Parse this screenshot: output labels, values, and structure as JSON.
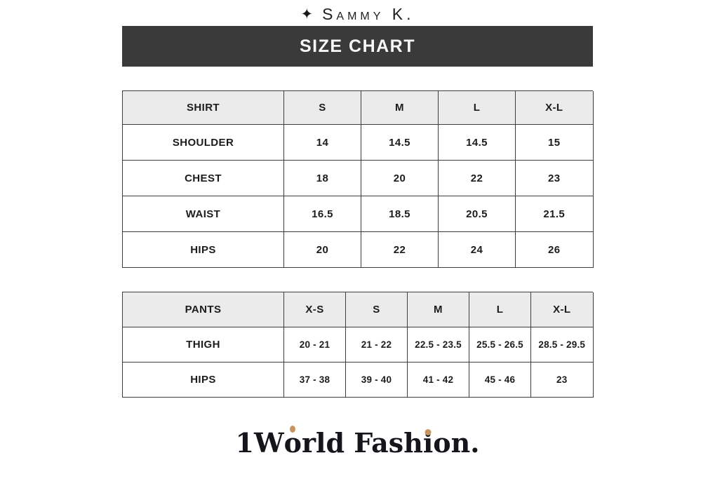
{
  "brand": {
    "star": "✦",
    "name": "Sammy K."
  },
  "banner": {
    "title": "SIZE CHART"
  },
  "shirt_table": {
    "header": [
      "SHIRT",
      "S",
      "M",
      "L",
      "X-L"
    ],
    "rows": [
      {
        "label": "SHOULDER",
        "values": [
          "14",
          "14.5",
          "14.5",
          "15"
        ]
      },
      {
        "label": "CHEST",
        "values": [
          "18",
          "20",
          "22",
          "23"
        ]
      },
      {
        "label": "WAIST",
        "values": [
          "16.5",
          "18.5",
          "20.5",
          "21.5"
        ]
      },
      {
        "label": "HIPS",
        "values": [
          "20",
          "22",
          "24",
          "26"
        ]
      }
    ]
  },
  "pants_table": {
    "header": [
      "PANTS",
      "X-S",
      "S",
      "M",
      "L",
      "X-L"
    ],
    "rows": [
      {
        "label": "THIGH",
        "values": [
          "20 - 21",
          "21 - 22",
          "22.5 - 23.5",
          "25.5 - 26.5",
          "28.5 - 29.5"
        ]
      },
      {
        "label": "HIPS",
        "values": [
          "37 - 38",
          "39 - 40",
          "41 - 42",
          "45 - 46",
          "23"
        ]
      }
    ]
  },
  "logo": {
    "segments": [
      "1W",
      "o",
      "rld Fash",
      "i",
      "on."
    ]
  },
  "colors": {
    "banner_bg": "#3a3a3a",
    "table_header_bg": "#ebebeb",
    "table_border": "#3d3d3d",
    "accent_gold": "#c6945f",
    "text": "#1c1c1c"
  },
  "chart_data": [
    {
      "type": "table",
      "title": "SIZE CHART — SHIRT",
      "columns": [
        "SHIRT",
        "S",
        "M",
        "L",
        "X-L"
      ],
      "rows": [
        [
          "SHOULDER",
          14,
          14.5,
          14.5,
          15
        ],
        [
          "CHEST",
          18,
          20,
          22,
          23
        ],
        [
          "WAIST",
          16.5,
          18.5,
          20.5,
          21.5
        ],
        [
          "HIPS",
          20,
          22,
          24,
          26
        ]
      ]
    },
    {
      "type": "table",
      "title": "SIZE CHART — PANTS",
      "columns": [
        "PANTS",
        "X-S",
        "S",
        "M",
        "L",
        "X-L"
      ],
      "rows": [
        [
          "THIGH",
          "20 - 21",
          "21 - 22",
          "22.5 - 23.5",
          "25.5 - 26.5",
          "28.5 - 29.5"
        ],
        [
          "HIPS",
          "37 - 38",
          "39 - 40",
          "41 - 42",
          "45 - 46",
          "23"
        ]
      ]
    }
  ]
}
